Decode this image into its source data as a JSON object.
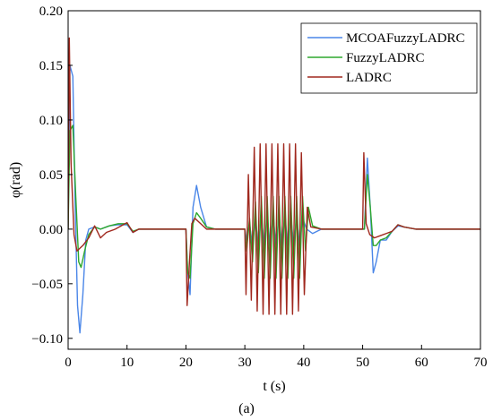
{
  "chart_data": {
    "type": "line",
    "xlabel": "t (s)",
    "ylabel": "φ(rad)",
    "xlim": [
      0,
      70
    ],
    "ylim": [
      -0.11,
      0.2
    ],
    "xticks": [
      0,
      10,
      20,
      30,
      40,
      50,
      60,
      70
    ],
    "yticks": [
      -0.1,
      -0.05,
      0.0,
      0.05,
      0.1,
      0.15,
      0.2
    ],
    "ytick_labels": [
      "−0.10",
      "−0.05",
      "0.00",
      "0.05",
      "0.10",
      "0.15",
      "0.20"
    ],
    "grid": false,
    "legend_position": "top-right",
    "caption": "(a)",
    "series": [
      {
        "name": "MCOAFuzzyLADRC",
        "color": "#4a86e8",
        "points": [
          [
            0,
            0.0
          ],
          [
            0.3,
            0.15
          ],
          [
            0.8,
            0.14
          ],
          [
            1.2,
            0.02
          ],
          [
            1.6,
            -0.07
          ],
          [
            2.0,
            -0.095
          ],
          [
            2.5,
            -0.06
          ],
          [
            3.0,
            -0.01
          ],
          [
            3.5,
            0.0
          ],
          [
            4.5,
            0.002
          ],
          [
            5.5,
            0.0
          ],
          [
            7.0,
            0.003
          ],
          [
            8.5,
            0.004
          ],
          [
            10.0,
            0.004
          ],
          [
            11.0,
            -0.003
          ],
          [
            12.0,
            0.0
          ],
          [
            20.0,
            0.0
          ],
          [
            20.3,
            -0.04
          ],
          [
            20.7,
            -0.06
          ],
          [
            21.2,
            0.02
          ],
          [
            21.8,
            0.04
          ],
          [
            22.5,
            0.02
          ],
          [
            23.5,
            0.002
          ],
          [
            25,
            0.0
          ],
          [
            30.0,
            0.0
          ],
          [
            30.3,
            -0.01
          ],
          [
            30.8,
            0.005
          ],
          [
            31.3,
            -0.015
          ],
          [
            31.8,
            0.01
          ],
          [
            32.3,
            -0.015
          ],
          [
            32.8,
            0.012
          ],
          [
            33.3,
            -0.015
          ],
          [
            33.8,
            0.012
          ],
          [
            34.3,
            -0.015
          ],
          [
            34.8,
            0.012
          ],
          [
            35.3,
            -0.015
          ],
          [
            35.8,
            0.012
          ],
          [
            36.3,
            -0.015
          ],
          [
            36.8,
            0.012
          ],
          [
            37.3,
            -0.015
          ],
          [
            37.8,
            0.012
          ],
          [
            38.3,
            -0.015
          ],
          [
            38.8,
            0.012
          ],
          [
            39.3,
            -0.015
          ],
          [
            39.8,
            0.01
          ],
          [
            40.5,
            0.0
          ],
          [
            41.5,
            -0.004
          ],
          [
            43,
            0.0
          ],
          [
            50.0,
            0.0
          ],
          [
            50.3,
            0.0
          ],
          [
            50.8,
            0.065
          ],
          [
            51.3,
            0.02
          ],
          [
            51.8,
            -0.04
          ],
          [
            52.3,
            -0.03
          ],
          [
            53.0,
            -0.01
          ],
          [
            54.0,
            -0.01
          ],
          [
            55.0,
            -0.002
          ],
          [
            56.0,
            0.003
          ],
          [
            57.0,
            0.002
          ],
          [
            59.0,
            0.0
          ],
          [
            70.0,
            0.0
          ]
        ]
      },
      {
        "name": "FuzzyLADRC",
        "color": "#2ea82e",
        "points": [
          [
            0,
            0.0
          ],
          [
            0.3,
            0.09
          ],
          [
            0.8,
            0.095
          ],
          [
            1.3,
            0.03
          ],
          [
            1.8,
            -0.03
          ],
          [
            2.2,
            -0.035
          ],
          [
            2.8,
            -0.02
          ],
          [
            3.5,
            -0.005
          ],
          [
            4.5,
            0.002
          ],
          [
            5.5,
            0.0
          ],
          [
            7.0,
            0.003
          ],
          [
            8.5,
            0.005
          ],
          [
            10.0,
            0.005
          ],
          [
            11.0,
            -0.002
          ],
          [
            12.0,
            0.0
          ],
          [
            20.0,
            0.0
          ],
          [
            20.3,
            -0.04
          ],
          [
            20.7,
            -0.045
          ],
          [
            21.2,
            0.005
          ],
          [
            21.8,
            0.015
          ],
          [
            22.5,
            0.01
          ],
          [
            23.5,
            0.002
          ],
          [
            25,
            0.0
          ],
          [
            30.0,
            0.0
          ],
          [
            30.3,
            -0.02
          ],
          [
            30.8,
            0.01
          ],
          [
            31.3,
            -0.03
          ],
          [
            31.8,
            0.025
          ],
          [
            32.3,
            -0.04
          ],
          [
            32.8,
            0.03
          ],
          [
            33.3,
            -0.045
          ],
          [
            33.8,
            0.03
          ],
          [
            34.3,
            -0.045
          ],
          [
            34.8,
            0.03
          ],
          [
            35.3,
            -0.045
          ],
          [
            35.8,
            0.03
          ],
          [
            36.3,
            -0.045
          ],
          [
            36.8,
            0.03
          ],
          [
            37.3,
            -0.045
          ],
          [
            37.8,
            0.03
          ],
          [
            38.3,
            -0.045
          ],
          [
            38.8,
            0.03
          ],
          [
            39.3,
            -0.045
          ],
          [
            39.8,
            0.03
          ],
          [
            40.3,
            -0.02
          ],
          [
            40.8,
            0.02
          ],
          [
            41.5,
            0.003
          ],
          [
            43,
            0.0
          ],
          [
            50.0,
            0.0
          ],
          [
            50.3,
            0.0
          ],
          [
            50.8,
            0.05
          ],
          [
            51.3,
            0.02
          ],
          [
            51.8,
            -0.015
          ],
          [
            52.3,
            -0.015
          ],
          [
            53.0,
            -0.01
          ],
          [
            54.0,
            -0.008
          ],
          [
            55.0,
            -0.002
          ],
          [
            56.0,
            0.004
          ],
          [
            57.0,
            0.002
          ],
          [
            59.0,
            0.0
          ],
          [
            70.0,
            0.0
          ]
        ]
      },
      {
        "name": "LADRC",
        "color": "#a0281e",
        "points": [
          [
            0,
            0.0
          ],
          [
            0.2,
            0.175
          ],
          [
            0.5,
            0.06
          ],
          [
            1.0,
            -0.005
          ],
          [
            1.5,
            -0.02
          ],
          [
            2.5,
            -0.015
          ],
          [
            3.5,
            -0.008
          ],
          [
            4.5,
            0.003
          ],
          [
            5.5,
            -0.008
          ],
          [
            6.5,
            -0.003
          ],
          [
            8.0,
            0.0
          ],
          [
            9.0,
            0.003
          ],
          [
            10.0,
            0.006
          ],
          [
            11.0,
            -0.003
          ],
          [
            12.0,
            0.0
          ],
          [
            20.0,
            0.0
          ],
          [
            20.2,
            -0.07
          ],
          [
            20.6,
            -0.03
          ],
          [
            21.0,
            0.005
          ],
          [
            21.5,
            0.01
          ],
          [
            22.5,
            0.005
          ],
          [
            23.5,
            0.0
          ],
          [
            30.0,
            0.0
          ],
          [
            30.2,
            -0.06
          ],
          [
            30.6,
            0.05
          ],
          [
            31.1,
            -0.065
          ],
          [
            31.6,
            0.075
          ],
          [
            32.1,
            -0.075
          ],
          [
            32.6,
            0.078
          ],
          [
            33.1,
            -0.078
          ],
          [
            33.6,
            0.078
          ],
          [
            34.1,
            -0.078
          ],
          [
            34.6,
            0.078
          ],
          [
            35.1,
            -0.078
          ],
          [
            35.6,
            0.078
          ],
          [
            36.1,
            -0.078
          ],
          [
            36.6,
            0.078
          ],
          [
            37.1,
            -0.078
          ],
          [
            37.6,
            0.078
          ],
          [
            38.1,
            -0.078
          ],
          [
            38.6,
            0.078
          ],
          [
            39.1,
            -0.075
          ],
          [
            39.6,
            0.07
          ],
          [
            40.1,
            -0.06
          ],
          [
            40.6,
            0.02
          ],
          [
            41.2,
            0.002
          ],
          [
            43,
            0.0
          ],
          [
            50.0,
            0.0
          ],
          [
            50.2,
            0.07
          ],
          [
            50.6,
            0.005
          ],
          [
            51.2,
            -0.005
          ],
          [
            52.0,
            -0.008
          ],
          [
            53.0,
            -0.006
          ],
          [
            54.0,
            -0.004
          ],
          [
            55.0,
            -0.002
          ],
          [
            56.0,
            0.004
          ],
          [
            57.0,
            0.002
          ],
          [
            59.0,
            0.0
          ],
          [
            70.0,
            0.0
          ]
        ]
      }
    ]
  }
}
